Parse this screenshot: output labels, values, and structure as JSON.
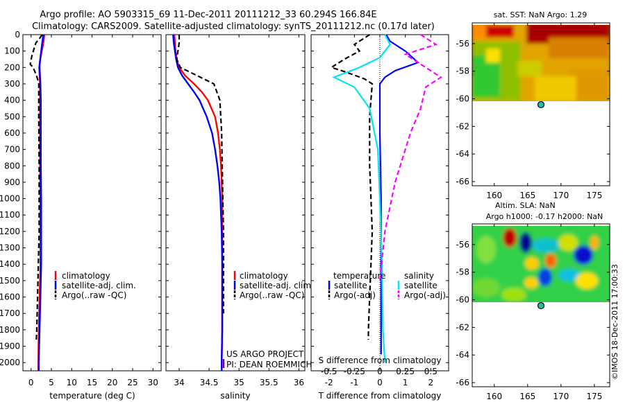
{
  "title": {
    "line1": "Argo profile: AO 5903315_69 11-Dec-2011 20111212_33 60.294S 166.84E",
    "line2": "Climatology: CARS2009. Satellite-adjusted climatology: synTS_20111212.nc (0.17d later)"
  },
  "footer": {
    "credit1": "US ARGO PROJECT",
    "credit2": "PI: DEAN ROEMMICH",
    "timestamp": "©IMOS 18-Dec-2011 17:00:33"
  },
  "colors": {
    "climatology": "#ff0000",
    "satellite": "#0000ff",
    "argo": "#000000",
    "salinity_sat": "#00e5ee",
    "salinity_argo": "#ff00ff"
  },
  "chart_data": [
    {
      "type": "line",
      "panel": "temperature",
      "xlabel": "temperature (deg C)",
      "ylabel": "",
      "xlim": [
        -2,
        32
      ],
      "ylim": [
        2050,
        0
      ],
      "xticks": [
        0,
        5,
        10,
        15,
        20,
        25,
        30
      ],
      "yticks": [
        0,
        100,
        200,
        300,
        400,
        500,
        600,
        700,
        800,
        900,
        1000,
        1100,
        1200,
        1300,
        1400,
        1500,
        1600,
        1700,
        1800,
        1900,
        2000
      ],
      "legend": [
        "climatology",
        "satellite-adj. clim.",
        "Argo(..raw -QC)"
      ],
      "series": [
        {
          "name": "climatology",
          "color": "#ff0000",
          "dash": "solid",
          "values": [
            [
              3.3,
              0
            ],
            [
              3.1,
              40
            ],
            [
              2.8,
              80
            ],
            [
              2.5,
              120
            ],
            [
              2.2,
              160
            ],
            [
              2.0,
              200
            ],
            [
              2.1,
              250
            ],
            [
              2.2,
              300
            ],
            [
              2.2,
              400
            ],
            [
              2.2,
              600
            ],
            [
              2.2,
              800
            ],
            [
              2.3,
              1000
            ],
            [
              2.3,
              1200
            ],
            [
              2.3,
              1400
            ],
            [
              2.1,
              1600
            ],
            [
              1.9,
              1800
            ],
            [
              1.8,
              2000
            ],
            [
              1.8,
              2050
            ]
          ]
        },
        {
          "name": "satellite-adj. clim.",
          "color": "#0000ff",
          "dash": "solid",
          "values": [
            [
              3.0,
              0
            ],
            [
              2.8,
              40
            ],
            [
              2.6,
              80
            ],
            [
              2.4,
              120
            ],
            [
              2.2,
              160
            ],
            [
              2.1,
              200
            ],
            [
              2.2,
              250
            ],
            [
              2.3,
              300
            ],
            [
              2.4,
              400
            ],
            [
              2.4,
              600
            ],
            [
              2.4,
              800
            ],
            [
              2.5,
              1000
            ],
            [
              2.5,
              1200
            ],
            [
              2.5,
              1400
            ],
            [
              2.3,
              1600
            ],
            [
              2.1,
              1800
            ],
            [
              1.9,
              2000
            ],
            [
              1.9,
              2050
            ]
          ]
        },
        {
          "name": "Argo(..raw -QC)",
          "color": "#000000",
          "dash": "dash",
          "values": [
            [
              2.7,
              0
            ],
            [
              2.2,
              20
            ],
            [
              1.2,
              50
            ],
            [
              0.8,
              80
            ],
            [
              0.2,
              130
            ],
            [
              -0.2,
              180
            ],
            [
              0.5,
              200
            ],
            [
              1.2,
              240
            ],
            [
              1.6,
              270
            ],
            [
              1.9,
              300
            ],
            [
              1.9,
              500
            ],
            [
              2.0,
              800
            ],
            [
              2.0,
              1000
            ],
            [
              2.0,
              1200
            ],
            [
              1.8,
              1400
            ],
            [
              1.6,
              1600
            ],
            [
              1.4,
              1800
            ],
            [
              1.3,
              1860
            ]
          ]
        }
      ]
    },
    {
      "type": "line",
      "panel": "salinity",
      "xlabel": "salinity",
      "ylabel": "",
      "xlim": [
        33.78,
        36.1
      ],
      "ylim": [
        2050,
        0
      ],
      "xticks": [
        34,
        34.5,
        35,
        35.5,
        36
      ],
      "legend": [
        "climatology",
        "satellite-adj. clim.",
        "Argo(..raw -QC)"
      ],
      "series": [
        {
          "name": "climatology",
          "color": "#ff0000",
          "dash": "solid",
          "values": [
            [
              33.92,
              0
            ],
            [
              33.93,
              50
            ],
            [
              33.94,
              100
            ],
            [
              33.96,
              150
            ],
            [
              34.0,
              200
            ],
            [
              34.1,
              250
            ],
            [
              34.25,
              300
            ],
            [
              34.38,
              350
            ],
            [
              34.48,
              400
            ],
            [
              34.6,
              500
            ],
            [
              34.65,
              600
            ],
            [
              34.68,
              700
            ],
            [
              34.7,
              800
            ],
            [
              34.71,
              900
            ],
            [
              34.72,
              1000
            ],
            [
              34.72,
              1200
            ],
            [
              34.72,
              1400
            ],
            [
              34.72,
              1600
            ],
            [
              34.72,
              1800
            ],
            [
              34.71,
              2000
            ],
            [
              34.71,
              2050
            ]
          ]
        },
        {
          "name": "satellite-adj. clim.",
          "color": "#0000ff",
          "dash": "solid",
          "values": [
            [
              33.9,
              0
            ],
            [
              33.91,
              50
            ],
            [
              33.93,
              100
            ],
            [
              33.95,
              150
            ],
            [
              33.98,
              200
            ],
            [
              34.05,
              250
            ],
            [
              34.15,
              300
            ],
            [
              34.25,
              350
            ],
            [
              34.34,
              400
            ],
            [
              34.46,
              500
            ],
            [
              34.55,
              600
            ],
            [
              34.6,
              700
            ],
            [
              34.64,
              800
            ],
            [
              34.67,
              900
            ],
            [
              34.69,
              1000
            ],
            [
              34.71,
              1200
            ],
            [
              34.72,
              1400
            ],
            [
              34.72,
              1600
            ],
            [
              34.72,
              1800
            ],
            [
              34.71,
              2000
            ],
            [
              34.71,
              2050
            ]
          ]
        },
        {
          "name": "Argo(..raw -QC)",
          "color": "#000000",
          "dash": "dash",
          "values": [
            [
              34.0,
              0
            ],
            [
              34.0,
              50
            ],
            [
              33.98,
              100
            ],
            [
              33.96,
              150
            ],
            [
              34.02,
              200
            ],
            [
              34.3,
              250
            ],
            [
              34.58,
              300
            ],
            [
              34.68,
              400
            ],
            [
              34.71,
              600
            ],
            [
              34.72,
              800
            ],
            [
              34.73,
              1000
            ],
            [
              34.74,
              1200
            ],
            [
              34.74,
              1400
            ],
            [
              34.74,
              1700
            ]
          ]
        }
      ]
    },
    {
      "type": "line",
      "panel": "difference",
      "xlabel": "T difference from climatology",
      "xlabel_top": "S difference from climatology",
      "xlim": [
        -2.7,
        2.7
      ],
      "ylim": [
        2050,
        0
      ],
      "xticks_T": [
        -2,
        -1,
        0,
        1,
        2
      ],
      "xticks_S": [
        -0.5,
        -0.25,
        0,
        0.25,
        0.5
      ],
      "xticks_S_labels": [
        "-0.5",
        "-0.25",
        "0",
        "0.25",
        "0.5"
      ],
      "legend_T_title": "temperature",
      "legend_S_title": "salinity",
      "legend": [
        "satellite",
        "Argo(-adj)",
        "satellite",
        "Argo(-adj)"
      ],
      "series": [
        {
          "name": "satellite",
          "group": "temperature",
          "color": "#0000ff",
          "dash": "solid",
          "values": [
            [
              0.25,
              0
            ],
            [
              0.4,
              40
            ],
            [
              1.0,
              100
            ],
            [
              1.5,
              170
            ],
            [
              0.6,
              220
            ],
            [
              0.2,
              260
            ],
            [
              0.0,
              300
            ],
            [
              0.0,
              600
            ],
            [
              0.05,
              1000
            ],
            [
              0.05,
              1400
            ],
            [
              0.05,
              1800
            ],
            [
              0.05,
              1950
            ]
          ]
        },
        {
          "name": "Argo(-adj)",
          "group": "temperature",
          "color": "#000000",
          "dash": "dash",
          "values": [
            [
              -0.4,
              0
            ],
            [
              -1.0,
              60
            ],
            [
              -0.8,
              100
            ],
            [
              -1.4,
              150
            ],
            [
              -1.9,
              200
            ],
            [
              -1.3,
              230
            ],
            [
              -0.6,
              270
            ],
            [
              -0.3,
              300
            ],
            [
              -0.4,
              500
            ],
            [
              -0.4,
              800
            ],
            [
              -0.35,
              1000
            ],
            [
              -0.3,
              1200
            ],
            [
              -0.35,
              1400
            ],
            [
              -0.4,
              1600
            ],
            [
              -0.45,
              1800
            ],
            [
              -0.45,
              1860
            ]
          ]
        },
        {
          "name": "satellite",
          "group": "salinity",
          "color": "#00e5ee",
          "dash": "solid",
          "values": [
            [
              0.05,
              0
            ],
            [
              0.1,
              60
            ],
            [
              0.0,
              140
            ],
            [
              -0.2,
              200
            ],
            [
              -0.45,
              260
            ],
            [
              -0.25,
              320
            ],
            [
              -0.1,
              450
            ],
            [
              -0.02,
              700
            ],
            [
              0.0,
              1000
            ],
            [
              0.02,
              1400
            ],
            [
              0.03,
              1800
            ],
            [
              0.05,
              2000
            ]
          ]
        },
        {
          "name": "Argo(-adj)",
          "group": "salinity",
          "color": "#ff00ff",
          "dash": "dash",
          "values": [
            [
              0.4,
              0
            ],
            [
              0.55,
              60
            ],
            [
              0.25,
              120
            ],
            [
              0.45,
              200
            ],
            [
              0.6,
              260
            ],
            [
              0.45,
              320
            ],
            [
              0.4,
              450
            ],
            [
              0.3,
              600
            ],
            [
              0.15,
              900
            ],
            [
              0.05,
              1200
            ],
            [
              0.0,
              1500
            ]
          ]
        }
      ]
    },
    {
      "type": "heatmap",
      "panel": "sst_map",
      "title": "sat. SST: NaN Argo: 1.29",
      "xticks": [
        160,
        165,
        170,
        175
      ],
      "yticks": [
        -56,
        -58,
        -60,
        -62,
        -64,
        -66
      ],
      "xlim": [
        156.7,
        177.3
      ],
      "ylim": [
        -66.3,
        -54.5
      ],
      "marker": {
        "lon": 166.84,
        "lat": -60.294
      }
    },
    {
      "type": "heatmap",
      "panel": "sla_map",
      "title": "Altim. SLA: NaN",
      "subtitle": "Argo h1000: -0.17 h2000: NaN",
      "xticks": [
        160,
        165,
        170,
        175
      ],
      "yticks": [
        -56,
        -58,
        -60,
        -62,
        -64,
        -66
      ],
      "xlim": [
        156.7,
        177.3
      ],
      "ylim": [
        -66.3,
        -54.5
      ],
      "marker": {
        "lon": 166.84,
        "lat": -60.294
      }
    }
  ]
}
